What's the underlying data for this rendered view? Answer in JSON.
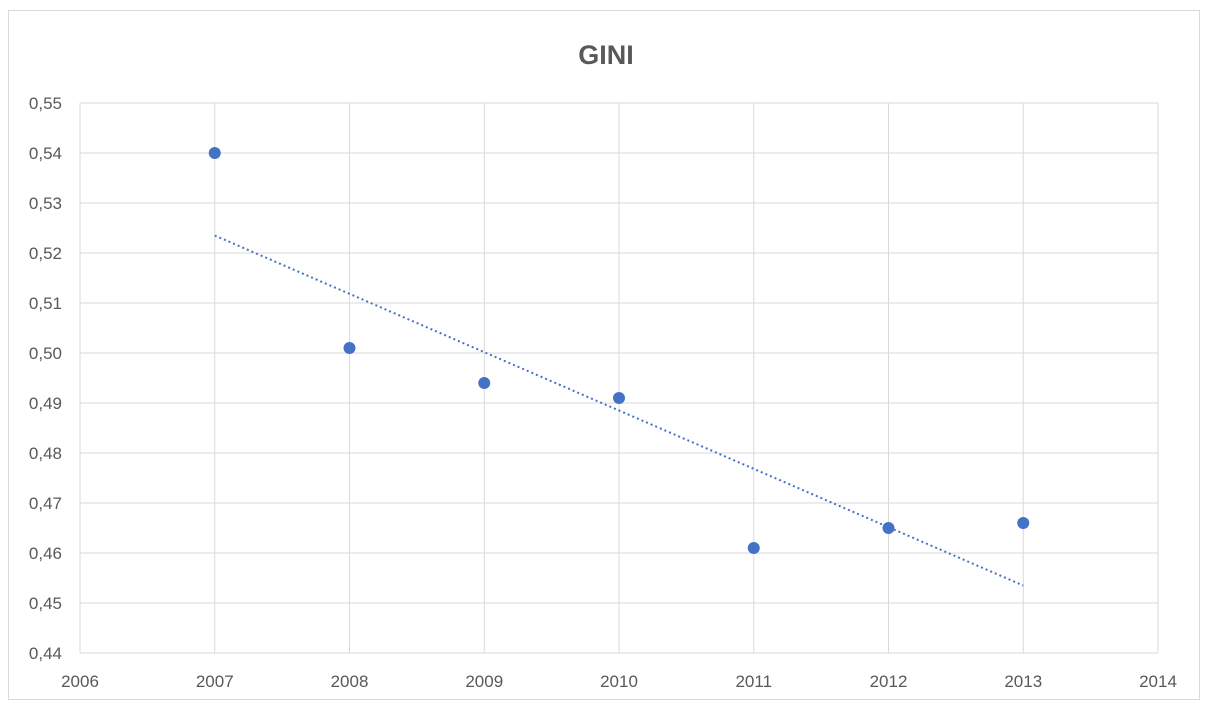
{
  "chart_data": {
    "type": "scatter",
    "title": "GINI",
    "xlabel": "",
    "ylabel": "",
    "xlim": [
      2006,
      2014
    ],
    "ylim": [
      0.44,
      0.55
    ],
    "x_ticks": [
      2006,
      2007,
      2008,
      2009,
      2010,
      2011,
      2012,
      2013,
      2014
    ],
    "y_ticks": [
      0.44,
      0.45,
      0.46,
      0.47,
      0.48,
      0.49,
      0.5,
      0.51,
      0.52,
      0.53,
      0.54,
      0.55
    ],
    "y_tick_labels": [
      "0,44",
      "0,45",
      "0,46",
      "0,47",
      "0,48",
      "0,49",
      "0,50",
      "0,51",
      "0,52",
      "0,53",
      "0,54",
      "0,55"
    ],
    "grid": true,
    "legend": "none",
    "series": [
      {
        "x": [
          2007,
          2008,
          2009,
          2010,
          2011,
          2012,
          2013
        ],
        "y": [
          0.54,
          0.501,
          0.494,
          0.491,
          0.461,
          0.465,
          0.466
        ],
        "color": "#4472c4"
      }
    ],
    "trendline": {
      "type": "linear",
      "style": "dotted",
      "x": [
        2007,
        2013
      ],
      "y": [
        0.5235,
        0.4535
      ],
      "color": "#4472c4"
    }
  }
}
